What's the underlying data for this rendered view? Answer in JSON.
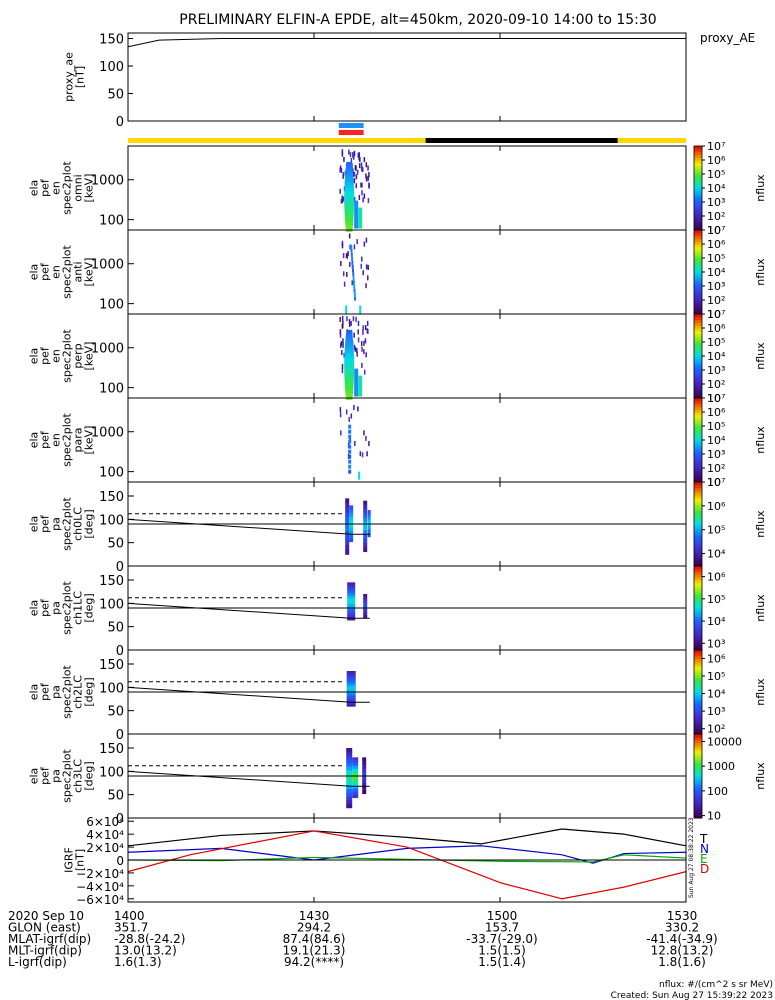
{
  "title": "PRELIMINARY ELFIN-A EPDE, alt=450km, 2020-09-10 14:00 to 15:30",
  "colors": {
    "sun_bar": "#ffd700",
    "shadow_bar": "#000000",
    "fast_mode_blue": "#1e90ff",
    "fast_mode_red": "#ff2020",
    "grf_T": "#000000",
    "grf_N": "#0000cc",
    "grf_E": "#00aa00",
    "grf_D": "#dd0000"
  },
  "chart_data": [
    {
      "type": "line",
      "panel": "proxy_ae",
      "ylabel_lines": [
        "proxy_ae",
        "[nT]"
      ],
      "legend": "proxy_AE",
      "yticks": [
        "0",
        "50",
        "100",
        "150"
      ],
      "ylim": [
        0,
        160
      ],
      "series": [
        {
          "name": "proxy_AE",
          "x_hhmm": [
            "14:00",
            "14:05",
            "14:15",
            "14:30",
            "14:45",
            "15:00",
            "15:15",
            "15:30"
          ],
          "values": [
            135,
            147,
            150,
            150,
            150,
            150,
            150,
            150
          ]
        }
      ]
    },
    {
      "type": "heatmap",
      "panel": "omni",
      "ylabel_lines": [
        "ela",
        "pef",
        "en",
        "spec2plot",
        "omni",
        "[keV]"
      ],
      "yticks": [
        "100",
        "1000"
      ],
      "yscale": "log",
      "ylim": [
        55,
        7000
      ],
      "colorbar": {
        "label": "nflux",
        "ticks": [
          "10",
          "10²",
          "10³",
          "10⁴",
          "10⁵",
          "10⁶",
          "10⁷"
        ],
        "range": [
          10,
          10000000
        ]
      },
      "active_interval": [
        "14:36",
        "14:38"
      ]
    },
    {
      "type": "heatmap",
      "panel": "anti",
      "ylabel_lines": [
        "ela",
        "pef",
        "en",
        "spec2plot",
        "anti",
        "[keV]"
      ],
      "yticks": [
        "100",
        "1000"
      ],
      "yscale": "log",
      "ylim": [
        55,
        7000
      ],
      "colorbar": {
        "label": "nflux",
        "ticks": [
          "10",
          "10²",
          "10³",
          "10⁴",
          "10⁵",
          "10⁶",
          "10⁷"
        ],
        "range": [
          10,
          10000000
        ]
      },
      "active_interval": [
        "14:36",
        "14:38"
      ]
    },
    {
      "type": "heatmap",
      "panel": "perp",
      "ylabel_lines": [
        "ela",
        "pef",
        "en",
        "spec2plot",
        "perp",
        "[keV]"
      ],
      "yticks": [
        "100",
        "1000"
      ],
      "yscale": "log",
      "ylim": [
        55,
        7000
      ],
      "colorbar": {
        "label": "nflux",
        "ticks": [
          "10",
          "10²",
          "10³",
          "10⁴",
          "10⁵",
          "10⁶",
          "10⁷"
        ],
        "range": [
          10,
          10000000
        ]
      },
      "active_interval": [
        "14:36",
        "14:38"
      ]
    },
    {
      "type": "heatmap",
      "panel": "para",
      "ylabel_lines": [
        "ela",
        "pef",
        "en",
        "spec2plot",
        "para",
        "[keV]"
      ],
      "yticks": [
        "100",
        "1000"
      ],
      "yscale": "log",
      "ylim": [
        55,
        7000
      ],
      "colorbar": {
        "label": "nflux",
        "ticks": [
          "10",
          "10²",
          "10³",
          "10⁴",
          "10⁵",
          "10⁶",
          "10⁷"
        ],
        "range": [
          10,
          10000000
        ]
      },
      "active_interval": [
        "14:36",
        "14:38"
      ]
    },
    {
      "type": "heatmap",
      "panel": "pa_ch0",
      "ylabel_lines": [
        "ela",
        "pef",
        "pa",
        "spec2plot",
        "ch0LC",
        "[deg]"
      ],
      "yticks": [
        "0",
        "50",
        "100",
        "150"
      ],
      "ylim": [
        0,
        180
      ],
      "colorbar": {
        "label": "nflux",
        "ticks": [
          "10⁴",
          "10⁵",
          "10⁶",
          "10⁷"
        ],
        "range": [
          3000,
          10000000
        ]
      },
      "lc_line": {
        "x_hhmm": [
          "14:00",
          "14:36"
        ],
        "values": [
          100,
          68
        ]
      },
      "blc_line": {
        "x_hhmm": [
          "14:00",
          "14:35"
        ],
        "values": [
          112,
          112
        ]
      },
      "ref_line": 90
    },
    {
      "type": "heatmap",
      "panel": "pa_ch1",
      "ylabel_lines": [
        "ela",
        "pef",
        "pa",
        "spec2plot",
        "ch1LC",
        "[deg]"
      ],
      "yticks": [
        "0",
        "50",
        "100",
        "150"
      ],
      "ylim": [
        0,
        180
      ],
      "colorbar": {
        "label": "nflux",
        "ticks": [
          "10³",
          "10⁴",
          "10⁵",
          "10⁶"
        ],
        "range": [
          500,
          3000000
        ]
      },
      "lc_line": {
        "x_hhmm": [
          "14:00",
          "14:36"
        ],
        "values": [
          100,
          68
        ]
      },
      "blc_line": {
        "x_hhmm": [
          "14:00",
          "14:35"
        ],
        "values": [
          112,
          112
        ]
      },
      "ref_line": 90
    },
    {
      "type": "heatmap",
      "panel": "pa_ch2",
      "ylabel_lines": [
        "ela",
        "pef",
        "pa",
        "spec2plot",
        "ch2LC",
        "[deg]"
      ],
      "yticks": [
        "0",
        "50",
        "100",
        "150"
      ],
      "ylim": [
        0,
        180
      ],
      "colorbar": {
        "label": "nflux",
        "ticks": [
          "10²",
          "10³",
          "10⁴",
          "10⁵",
          "10⁶"
        ],
        "range": [
          50,
          3000000
        ]
      },
      "lc_line": {
        "x_hhmm": [
          "14:00",
          "14:36"
        ],
        "values": [
          100,
          68
        ]
      },
      "blc_line": {
        "x_hhmm": [
          "14:00",
          "14:35"
        ],
        "values": [
          112,
          112
        ]
      },
      "ref_line": 90
    },
    {
      "type": "heatmap",
      "panel": "pa_ch3",
      "ylabel_lines": [
        "ela",
        "pef",
        "pa",
        "spec2plot",
        "ch3LC",
        "[deg]"
      ],
      "yticks": [
        "0",
        "50",
        "100",
        "150"
      ],
      "ylim": [
        0,
        180
      ],
      "colorbar": {
        "label": "nflux",
        "ticks": [
          "10",
          "100",
          "1000",
          "10000"
        ],
        "range": [
          8,
          20000
        ]
      },
      "lc_line": {
        "x_hhmm": [
          "14:00",
          "14:36"
        ],
        "values": [
          100,
          68
        ]
      },
      "blc_line": {
        "x_hhmm": [
          "14:00",
          "14:35"
        ],
        "values": [
          112,
          112
        ]
      },
      "ref_line": 90
    },
    {
      "type": "line",
      "panel": "igrf",
      "ylabel_lines": [
        "IGRF",
        "[nT]"
      ],
      "yticks": [
        "−6×10⁴",
        "−4×10⁴",
        "−2×10⁴",
        "0",
        "2×10⁴",
        "4×10⁴",
        "6×10⁴"
      ],
      "ylim": [
        -65000,
        65000
      ],
      "series": [
        {
          "name": "T",
          "x_hhmm": [
            "14:00",
            "14:15",
            "14:30",
            "14:45",
            "14:57",
            "15:10",
            "15:20",
            "15:30"
          ],
          "values": [
            22000,
            38000,
            45000,
            35000,
            25000,
            48000,
            40000,
            22000
          ]
        },
        {
          "name": "N",
          "x_hhmm": [
            "14:00",
            "14:15",
            "14:30",
            "14:45",
            "14:57",
            "15:10",
            "15:15",
            "15:20",
            "15:30"
          ],
          "values": [
            12000,
            18000,
            0,
            18000,
            22000,
            8000,
            -5000,
            10000,
            12000
          ]
        },
        {
          "name": "E",
          "x_hhmm": [
            "14:00",
            "14:15",
            "14:30",
            "14:45",
            "15:00",
            "15:15",
            "15:20",
            "15:30"
          ],
          "values": [
            0,
            -1000,
            4000,
            1000,
            -2000,
            -3000,
            8000,
            3000
          ]
        },
        {
          "name": "D",
          "x_hhmm": [
            "14:00",
            "14:10",
            "14:30",
            "14:45",
            "15:00",
            "15:10",
            "15:20",
            "15:30"
          ],
          "values": [
            -18000,
            8000,
            45000,
            20000,
            -35000,
            -60000,
            -42000,
            -18000
          ]
        }
      ]
    }
  ],
  "time_axis": {
    "range_hhmm": [
      "14:00",
      "15:30"
    ],
    "tick_labels": [
      {
        "t": "14:00",
        "label": "1400"
      },
      {
        "t": "14:30",
        "label": "1430"
      },
      {
        "t": "15:00",
        "label": "1500"
      },
      {
        "t": "15:30",
        "label": "1530"
      }
    ]
  },
  "sun_shadow_bar": [
    {
      "state": "sun",
      "from": "14:00",
      "to": "14:48"
    },
    {
      "state": "shadow",
      "from": "14:48",
      "to": "15:19"
    },
    {
      "state": "sun",
      "from": "15:19",
      "to": "15:30"
    }
  ],
  "fast_mode": {
    "from": "14:34",
    "to": "14:38"
  },
  "ephemeris": {
    "rows": [
      {
        "label": "2020 Sep 10",
        "values": [
          "1400",
          "1430",
          "1500",
          "1530"
        ]
      },
      {
        "label": "GLON (east)",
        "values": [
          "351.7",
          "294.2",
          "153.7",
          "330.2"
        ]
      },
      {
        "label": "MLAT-igrf(dip)",
        "values": [
          "-28.8(-24.2)",
          "87.4(84.6)",
          "-33.7(-29.0)",
          "-41.4(-34.9)"
        ]
      },
      {
        "label": "MLT-igrf(dip)",
        "values": [
          "13.0(13.2)",
          "19.1(21.3)",
          "1.5(1.5)",
          "12.8(13.2)"
        ]
      },
      {
        "label": "L-igrf(dip)",
        "values": [
          "1.6(1.3)",
          "94.2(****)",
          "1.5(1.4)",
          "1.8(1.6)"
        ]
      }
    ]
  },
  "footer": {
    "units": "nflux: #/(cm^2 s sr MeV)",
    "created": "Created: Sun Aug 27 15:39:22 2023",
    "stamp": "Sun Aug 27 08:38:22 2023"
  }
}
